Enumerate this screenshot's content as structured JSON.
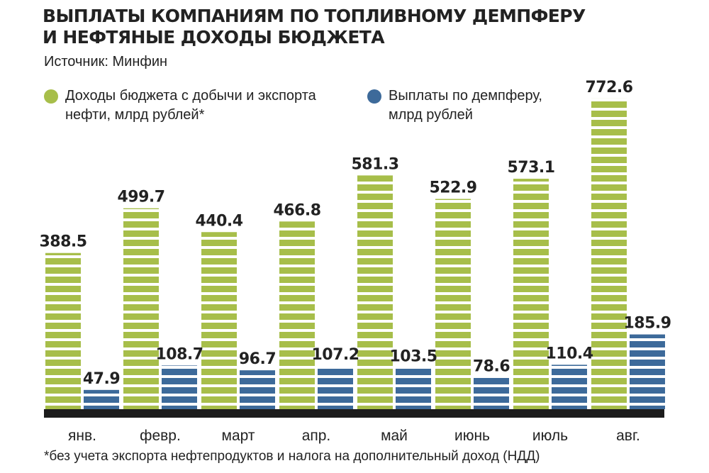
{
  "title": {
    "line1": "ВЫПЛАТЫ КОМПАНИЯМ ПО ТОПЛИВНОМУ ДЕМПФЕРУ",
    "line2": "И НЕФТЯНЫЕ ДОХОДЫ БЮДЖЕТА"
  },
  "source": "Источник: Минфин",
  "legend": {
    "revenue": {
      "line1": "Доходы бюджета с добычи и экспорта",
      "line2": "нефти, млрд рублей*",
      "color": "#a7be4a"
    },
    "damper": {
      "line1": "Выплаты по демпферу,",
      "line2": "млрд рублей",
      "color": "#3d6a9a"
    }
  },
  "footnote": "*без учета экспорта нефтепродуктов и налога на дополнительный доход (НДД)",
  "chart_data": {
    "type": "bar",
    "categories": [
      "янв.",
      "февр.",
      "март",
      "апр.",
      "май",
      "июнь",
      "июль",
      "авг."
    ],
    "series": [
      {
        "name": "Доходы бюджета с добычи и экспорта нефти, млрд рублей*",
        "color": "#a7be4a",
        "values": [
          388.5,
          499.7,
          440.4,
          466.8,
          581.3,
          522.9,
          573.1,
          772.6
        ],
        "labels": [
          "388.5",
          "499.7",
          "440.4",
          "466.8",
          "581.3",
          "522.9",
          "573.1",
          "772.6"
        ]
      },
      {
        "name": "Выплаты по демпферу, млрд рублей",
        "color": "#3d6a9a",
        "values": [
          47.9,
          108.7,
          96.7,
          107.2,
          103.5,
          78.6,
          110.4,
          185.9
        ],
        "labels": [
          "47.9",
          "108.7",
          "96.7",
          "107.2",
          "103.5",
          "78.6",
          "110.4",
          "185.9"
        ]
      }
    ],
    "ylim": [
      0,
      800
    ],
    "grid": false,
    "legend_position": "top"
  }
}
